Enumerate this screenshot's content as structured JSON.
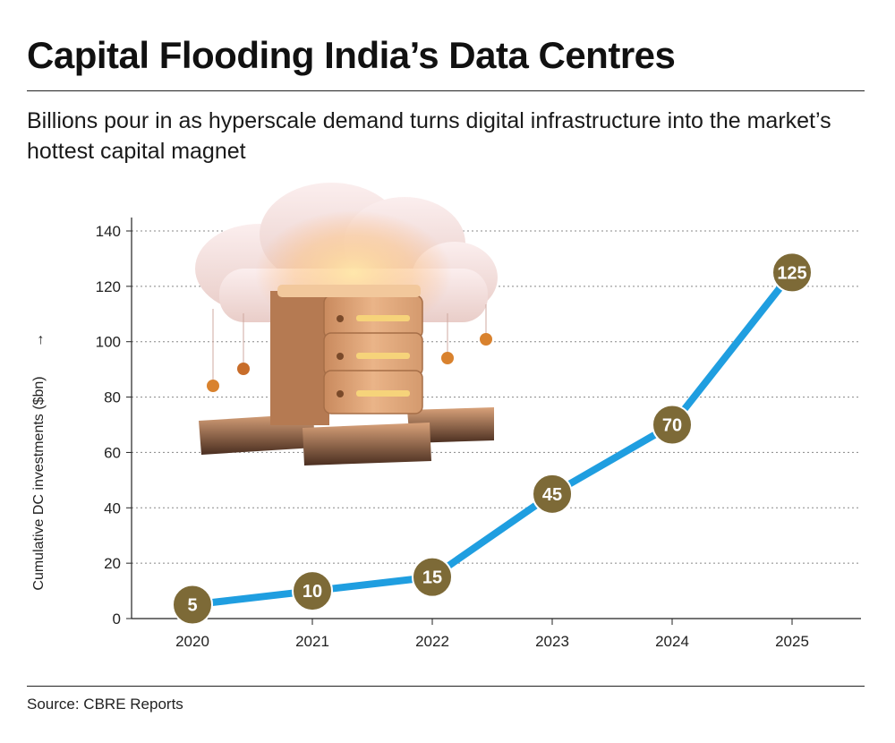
{
  "header": {
    "title": "Capital Flooding India’s Data Centres",
    "subtitle": "Billions pour in as hyperscale demand turns digital infrastructure into the market’s hottest capital magnet"
  },
  "footer": {
    "source": "Source: CBRE Reports"
  },
  "colors": {
    "line": "#1f9ee0",
    "marker": "#7d6a37",
    "grid": "#888888",
    "axis": "#222222"
  },
  "illustration": {
    "name": "cloud-server-illustration"
  },
  "chart_data": {
    "type": "line",
    "title": "Capital Flooding India’s Data Centres",
    "xlabel": "",
    "ylabel": "Cumulative DC investments ($bn)",
    "ylabel_arrow": "→",
    "categories": [
      "2020",
      "2021",
      "2022",
      "2023",
      "2024",
      "2025"
    ],
    "values": [
      5,
      10,
      15,
      45,
      70,
      125
    ],
    "data_labels": [
      "5",
      "10",
      "15",
      "45",
      "70",
      "125"
    ],
    "ylim": [
      0,
      140
    ],
    "yticks": [
      0,
      20,
      40,
      60,
      80,
      100,
      120,
      140
    ],
    "grid": "horizontal-dotted",
    "legend": "none"
  }
}
